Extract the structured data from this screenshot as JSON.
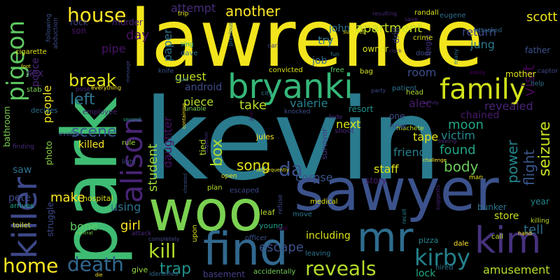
{
  "background": "#000000",
  "words": [
    {
      "text": "kevin",
      "color": "#2a7b8e"
    },
    {
      "text": "lawrence",
      "color": "#f2e51d"
    },
    {
      "text": "park",
      "color": "#3fbc73"
    },
    {
      "text": "sawyer",
      "color": "#3b528b"
    },
    {
      "text": "woo",
      "color": "#7ad151"
    },
    {
      "text": "find",
      "color": "#31688e"
    },
    {
      "text": "mr",
      "color": "#2e6d8e"
    },
    {
      "text": "kim",
      "color": "#46327e"
    },
    {
      "text": "bryanki",
      "color": "#35b779"
    },
    {
      "text": "family",
      "color": "#d2e21b"
    },
    {
      "text": "killer",
      "color": "#3e4989"
    },
    {
      "text": "alison",
      "color": "#482576"
    },
    {
      "text": "pigeon",
      "color": "#5ec962"
    },
    {
      "text": "house",
      "color": "#fde725"
    },
    {
      "text": "kirby",
      "color": "#26828e"
    },
    {
      "text": "reveals",
      "color": "#b5de2b"
    },
    {
      "text": "home",
      "color": "#fde725"
    },
    {
      "text": "death",
      "color": "#31688e"
    },
    {
      "text": "kill",
      "color": "#b5de2b"
    },
    {
      "text": "trap",
      "color": "#21918c"
    },
    {
      "text": "break",
      "color": "#e5e419"
    },
    {
      "text": "left",
      "color": "#2c728e"
    },
    {
      "text": "scene",
      "color": "#38598c"
    },
    {
      "text": "da",
      "color": "#3b528b"
    },
    {
      "text": "box",
      "color": "#addc30"
    },
    {
      "text": "song",
      "color": "#e5e419"
    },
    {
      "text": "seizure",
      "color": "#c8e020"
    },
    {
      "text": "flight",
      "color": "#39568c"
    },
    {
      "text": "power",
      "color": "#25858e"
    },
    {
      "text": "escape",
      "color": "#3b528b"
    },
    {
      "text": "amusement",
      "color": "#b5de2b"
    },
    {
      "text": "tell",
      "color": "#2e6e8e"
    },
    {
      "text": "visit",
      "color": "#440154"
    },
    {
      "text": "scott",
      "color": "#f1e51d"
    },
    {
      "text": "another",
      "color": "#fde725"
    },
    {
      "text": "apartment",
      "color": "#c0df25"
    },
    {
      "text": "return",
      "color": "#3e4a89"
    },
    {
      "text": "attempt",
      "color": "#472c7a"
    },
    {
      "text": "john",
      "color": "#2c718e"
    },
    {
      "text": "jung",
      "color": "#2a788e"
    },
    {
      "text": "try",
      "color": "#2c728e"
    },
    {
      "text": "job",
      "color": "#31688e"
    },
    {
      "text": "room",
      "color": "#3d4e8a"
    },
    {
      "text": "revealed",
      "color": "#482475"
    },
    {
      "text": "chained",
      "color": "#481a6c"
    },
    {
      "text": "alec",
      "color": "#48186a"
    },
    {
      "text": "moon",
      "color": "#21a685"
    },
    {
      "text": "victim",
      "color": "#23898e"
    },
    {
      "text": "tape",
      "color": "#e5e419"
    },
    {
      "text": "friend",
      "color": "#27808e"
    },
    {
      "text": "found",
      "color": "#20a486"
    },
    {
      "text": "body",
      "color": "#6ccd5a"
    },
    {
      "text": "staff",
      "color": "#dde318"
    },
    {
      "text": "corpse",
      "color": "#3b528b"
    },
    {
      "text": "valerie",
      "color": "#25838e"
    },
    {
      "text": "take",
      "color": "#b8de29"
    },
    {
      "text": "next",
      "color": "#dde318"
    },
    {
      "text": "piece",
      "color": "#b5de2b"
    },
    {
      "text": "guest",
      "color": "#c2df23"
    },
    {
      "text": "student",
      "color": "#a0da39"
    },
    {
      "text": "daughter",
      "color": "#471164"
    },
    {
      "text": "paper",
      "color": "#2c718e"
    },
    {
      "text": "android",
      "color": "#3e4c8a"
    },
    {
      "text": "day",
      "color": "#471063"
    },
    {
      "text": "pipe",
      "color": "#471365"
    },
    {
      "text": "using",
      "color": "#2d708e"
    },
    {
      "text": "girl",
      "color": "#fde725"
    },
    {
      "text": "bone",
      "color": "#5ec962"
    },
    {
      "text": "make",
      "color": "#fde725"
    },
    {
      "text": "saw",
      "color": "#2d708e"
    },
    {
      "text": "pete",
      "color": "#3e4989"
    },
    {
      "text": "sex",
      "color": "#482677"
    },
    {
      "text": "people",
      "color": "#f1e51d"
    },
    {
      "text": "police",
      "color": "#482576"
    },
    {
      "text": "killed",
      "color": "#fde725"
    },
    {
      "text": "murder",
      "color": "#482878"
    },
    {
      "text": "rock",
      "color": "#433e85"
    },
    {
      "text": "owner",
      "color": "#dde318"
    },
    {
      "text": "store",
      "color": "#c8e020"
    },
    {
      "text": "bunker",
      "color": "#2b758e"
    },
    {
      "text": "lock",
      "color": "#22a884"
    },
    {
      "text": "including",
      "color": "#dde318"
    },
    {
      "text": "basement",
      "color": "#433e85"
    },
    {
      "text": "struggle",
      "color": "#3e4a89"
    },
    {
      "text": "photo",
      "color": "#8bd646"
    },
    {
      "text": "hospital",
      "color": "#d8e219"
    },
    {
      "text": "bathroom",
      "color": "#7ad151"
    },
    {
      "text": "mother",
      "color": "#dde318"
    },
    {
      "text": "father",
      "color": "#3b528b"
    },
    {
      "text": "year",
      "color": "#24878e"
    },
    {
      "text": "resort",
      "color": "#21918c"
    },
    {
      "text": "survivor",
      "color": "#453882"
    },
    {
      "text": "story",
      "color": "#481d6f"
    },
    {
      "text": "plan",
      "color": "#b5de2b"
    },
    {
      "text": "jules",
      "color": "#fde725"
    },
    {
      "text": "tied",
      "color": "#b5de2b"
    },
    {
      "text": "son",
      "color": "#481467"
    },
    {
      "text": "cigarette",
      "color": "#e2e418"
    },
    {
      "text": "dave",
      "color": "#2c728e"
    },
    {
      "text": "begin",
      "color": "#46307e"
    },
    {
      "text": "drill",
      "color": "#3f4788"
    },
    {
      "text": "eugene",
      "color": "#2e6f8e"
    },
    {
      "text": "randall",
      "color": "#d8e219"
    },
    {
      "text": "crime",
      "color": "#dde318"
    },
    {
      "text": "attacked",
      "color": "#31688e"
    },
    {
      "text": "captor",
      "color": "#3e4989"
    },
    {
      "text": "officer",
      "color": "#3b528b"
    },
    {
      "text": "medical",
      "color": "#dde318"
    },
    {
      "text": "pizza",
      "color": "#25858e"
    },
    {
      "text": "dale",
      "color": "#fde725"
    },
    {
      "text": "hired",
      "color": "#2a778e"
    },
    {
      "text": "call",
      "color": "#c2df23"
    },
    {
      "text": "accidentally",
      "color": "#75d054"
    },
    {
      "text": "identifies",
      "color": "#31688e"
    },
    {
      "text": "give",
      "color": "#95d840"
    },
    {
      "text": "arrives",
      "color": "#1fa187"
    },
    {
      "text": "toilet",
      "color": "#d8e219"
    },
    {
      "text": "finding",
      "color": "#472a7a"
    },
    {
      "text": "decides",
      "color": "#2c728e"
    },
    {
      "text": "stab",
      "color": "#7ad151"
    },
    {
      "text": "employee",
      "color": "#482677"
    },
    {
      "text": "rule",
      "color": "#a0da39"
    },
    {
      "text": "light",
      "color": "#3e4989"
    },
    {
      "text": "evelyn",
      "color": "#3e4a89"
    },
    {
      "text": "escaped",
      "color": "#3e4989"
    },
    {
      "text": "open",
      "color": "#e5e419"
    },
    {
      "text": "young",
      "color": "#1f9e89"
    },
    {
      "text": "refuse",
      "color": "#3f4788"
    },
    {
      "text": "leaf",
      "color": "#b5de2b"
    },
    {
      "text": "move",
      "color": "#2a788e"
    },
    {
      "text": "leaving",
      "color": "#2c738e"
    },
    {
      "text": "city",
      "color": "#2a788e"
    },
    {
      "text": "knocked",
      "color": "#3e4c8a"
    },
    {
      "text": "hide",
      "color": "#482677"
    },
    {
      "text": "shoot",
      "color": "#482878"
    },
    {
      "text": "machete",
      "color": "#c2df23"
    },
    {
      "text": "free",
      "color": "#5ec962"
    },
    {
      "text": "bag",
      "color": "#d8e219"
    },
    {
      "text": "patient",
      "color": "#2d708e"
    },
    {
      "text": "head",
      "color": "#addc30"
    },
    {
      "text": "convicted",
      "color": "#dde318"
    },
    {
      "text": "away",
      "color": "#440154"
    },
    {
      "text": "door",
      "color": "#3e4c8a"
    },
    {
      "text": "clue",
      "color": "#2e6f8e"
    },
    {
      "text": "unable",
      "color": "#7ad151"
    },
    {
      "text": "everything",
      "color": "#fde725"
    },
    {
      "text": "pose",
      "color": "#482677"
    },
    {
      "text": "knife",
      "color": "#3b528b"
    },
    {
      "text": "trip",
      "color": "#e5e419"
    },
    {
      "text": "suspect",
      "color": "#e5e419"
    },
    {
      "text": "fun",
      "color": "#2c728e"
    },
    {
      "text": "car",
      "color": "#453882"
    },
    {
      "text": "previous",
      "color": "#31688e"
    },
    {
      "text": "sing",
      "color": "#1fa187"
    },
    {
      "text": "one",
      "color": "#3e4c8a"
    },
    {
      "text": "new",
      "color": "#3b528b"
    },
    {
      "text": "seeing",
      "color": "#472d7b"
    },
    {
      "text": "challenge",
      "color": "#fde725"
    },
    {
      "text": "man",
      "color": "#e5e419"
    },
    {
      "text": "killing",
      "color": "#c2df23"
    },
    {
      "text": "help",
      "color": "#2c728e"
    },
    {
      "text": "hand",
      "color": "#fde725"
    },
    {
      "text": "recall",
      "color": "#26828e"
    },
    {
      "text": "suggests",
      "color": "#482475"
    },
    {
      "text": "completely",
      "color": "#3e4989"
    },
    {
      "text": "central",
      "color": "#7ad151"
    },
    {
      "text": "attack",
      "color": "#482878"
    },
    {
      "text": "upon",
      "color": "#d8e219"
    },
    {
      "text": "subsequently",
      "color": "#e5e419"
    },
    {
      "text": "following",
      "color": "#3b528b"
    },
    {
      "text": "abduction",
      "color": "#3e4989"
    },
    {
      "text": "party",
      "color": "#3e4989"
    },
    {
      "text": "save",
      "color": "#482878"
    },
    {
      "text": "resulting",
      "color": "#482878"
    },
    {
      "text": "many",
      "color": "#2c728e"
    },
    {
      "text": "wendy",
      "color": "#482878"
    },
    {
      "text": "clock",
      "color": "#46307e"
    },
    {
      "text": "juan",
      "color": "#440154"
    },
    {
      "text": "containing",
      "color": "#fde725"
    },
    {
      "text": "together",
      "color": "#46307e"
    },
    {
      "text": "cheated",
      "color": "#3b528b"
    },
    {
      "text": "foot",
      "color": "#e5e419"
    },
    {
      "text": "message",
      "color": "#3e4989"
    },
    {
      "text": "second",
      "color": "#22a884"
    },
    {
      "text": "die",
      "color": "#fde725"
    },
    {
      "text": "app",
      "color": "#440154"
    }
  ]
}
